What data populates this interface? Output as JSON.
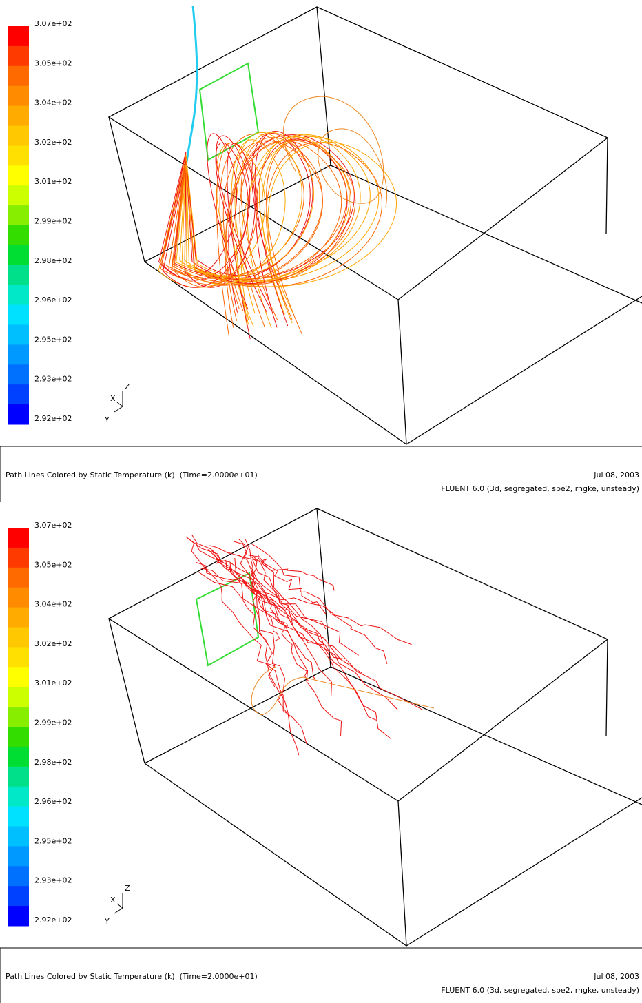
{
  "panels": [
    {
      "colorbar_labels": [
        "3.07e+02",
        "3.05e+02",
        "3.04e+02",
        "3.02e+02",
        "3.01e+02",
        "2.99e+02",
        "2.98e+02",
        "2.96e+02",
        "2.95e+02",
        "2.93e+02",
        "2.92e+02"
      ],
      "triad": {
        "x": "X",
        "y": "Y",
        "z": "Z"
      },
      "caption": "Path Lines Colored by Static Temperature (k)  (Time=2.0000e+01)",
      "date": "Jul 08, 2003",
      "solver": "FLUENT 6.0 (3d, segregated, spe2, rngke, unsteady)"
    },
    {
      "colorbar_labels": [
        "3.07e+02",
        "3.05e+02",
        "3.04e+02",
        "3.02e+02",
        "3.01e+02",
        "2.99e+02",
        "2.98e+02",
        "2.96e+02",
        "2.95e+02",
        "2.93e+02",
        "2.92e+02"
      ],
      "triad": {
        "x": "X",
        "y": "Y",
        "z": "Z"
      },
      "caption": "Path Lines Colored by Static Temperature (k)  (Time=2.0000e+01)",
      "date": "Jul 08, 2003",
      "solver": "FLUENT 6.0 (3d, segregated, spe2, rngke, unsteady)"
    }
  ]
}
